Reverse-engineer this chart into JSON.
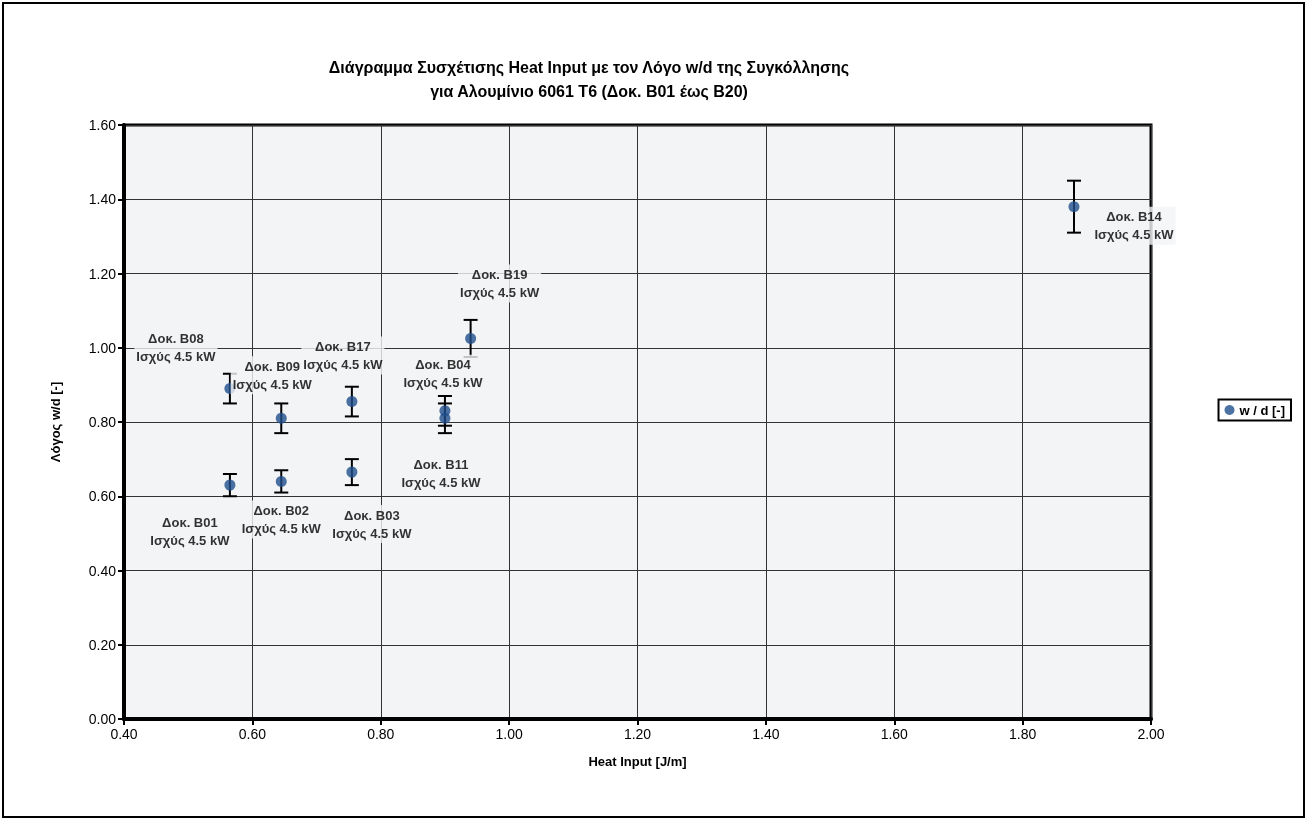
{
  "chart_data": {
    "type": "scatter",
    "title": "Διάγραμμα Συσχέτισης Heat Input με τον Λόγο w/d της Συγκόλλησης\nγια Αλουμίνιο 6061 Τ6 (Δοκ. Β01 έως Β20)",
    "xlabel": "Heat Input [J/m]",
    "ylabel": "Λόγος w/d [-]",
    "series": [
      {
        "name": "w / d [-]",
        "color": "#1f4e8c",
        "x": [
          0.565,
          0.565,
          0.645,
          0.645,
          0.755,
          0.755,
          0.9,
          0.9,
          0.94,
          1.88
        ],
        "values": [
          0.89,
          0.63,
          0.81,
          0.64,
          0.855,
          0.665,
          0.83,
          0.81,
          1.025,
          1.38
        ],
        "errors": [
          0.04,
          0.03,
          0.04,
          0.03,
          0.04,
          0.035,
          0.04,
          0.04,
          0.05,
          0.07
        ]
      }
    ],
    "annotations": [
      {
        "text": "Δοκ. Β08\nΙσχύς 4.5 kW",
        "x": 0.565,
        "y": 0.89
      },
      {
        "text": "Δοκ. Β01\nΙσχύς 4.5 kW",
        "x": 0.565,
        "y": 0.63
      },
      {
        "text": "Δοκ. Β09\nΙσχύς 4.5 kW",
        "x": 0.645,
        "y": 0.81
      },
      {
        "text": "Δοκ. Β02\nΙσχύς 4.5 kW",
        "x": 0.645,
        "y": 0.64
      },
      {
        "text": "Δοκ. Β17\nΙσχύς 4.5 kW",
        "x": 0.755,
        "y": 0.855
      },
      {
        "text": "Δοκ. Β03\nΙσχύς 4.5 kW",
        "x": 0.755,
        "y": 0.665
      },
      {
        "text": "Δοκ. Β04\nΙσχύς 4.5 kW",
        "x": 0.9,
        "y": 0.83
      },
      {
        "text": "Δοκ. Β11\nΙσχύς 4.5 kW",
        "x": 0.9,
        "y": 0.81
      },
      {
        "text": "Δοκ. Β19\nΙσχύς 4.5 kW",
        "x": 0.94,
        "y": 1.025
      },
      {
        "text": "Δοκ. Β14\nΙσχύς 4.5 kW",
        "x": 1.88,
        "y": 1.38
      }
    ],
    "xlim": [
      0.4,
      2.0
    ],
    "xticks": [
      {
        "value": 0.4,
        "label": "0.40"
      },
      {
        "value": 0.6,
        "label": "0.60"
      },
      {
        "value": 0.8,
        "label": "0.80"
      },
      {
        "value": 1.0,
        "label": "1.00"
      },
      {
        "value": 1.2,
        "label": "1.20"
      },
      {
        "value": 1.4,
        "label": "1.40"
      },
      {
        "value": 1.6,
        "label": "1.60"
      },
      {
        "value": 1.8,
        "label": "1.80"
      },
      {
        "value": 2.0,
        "label": "2.00"
      }
    ],
    "ylim": [
      0,
      1.6
    ],
    "yticks": [
      {
        "value": 0,
        "label": "0.00"
      },
      {
        "value": 0.2,
        "label": "0.20"
      },
      {
        "value": 0.4,
        "label": "0.40"
      },
      {
        "value": 0.6,
        "label": "0.60"
      },
      {
        "value": 0.8,
        "label": "0.80"
      },
      {
        "value": 1.0,
        "label": "1.00"
      },
      {
        "value": 1.2,
        "label": "1.20"
      },
      {
        "value": 1.4,
        "label": "1.40"
      },
      {
        "value": 1.6,
        "label": "1.60"
      }
    ],
    "grid": true,
    "legend": "right",
    "marker": "circle"
  }
}
